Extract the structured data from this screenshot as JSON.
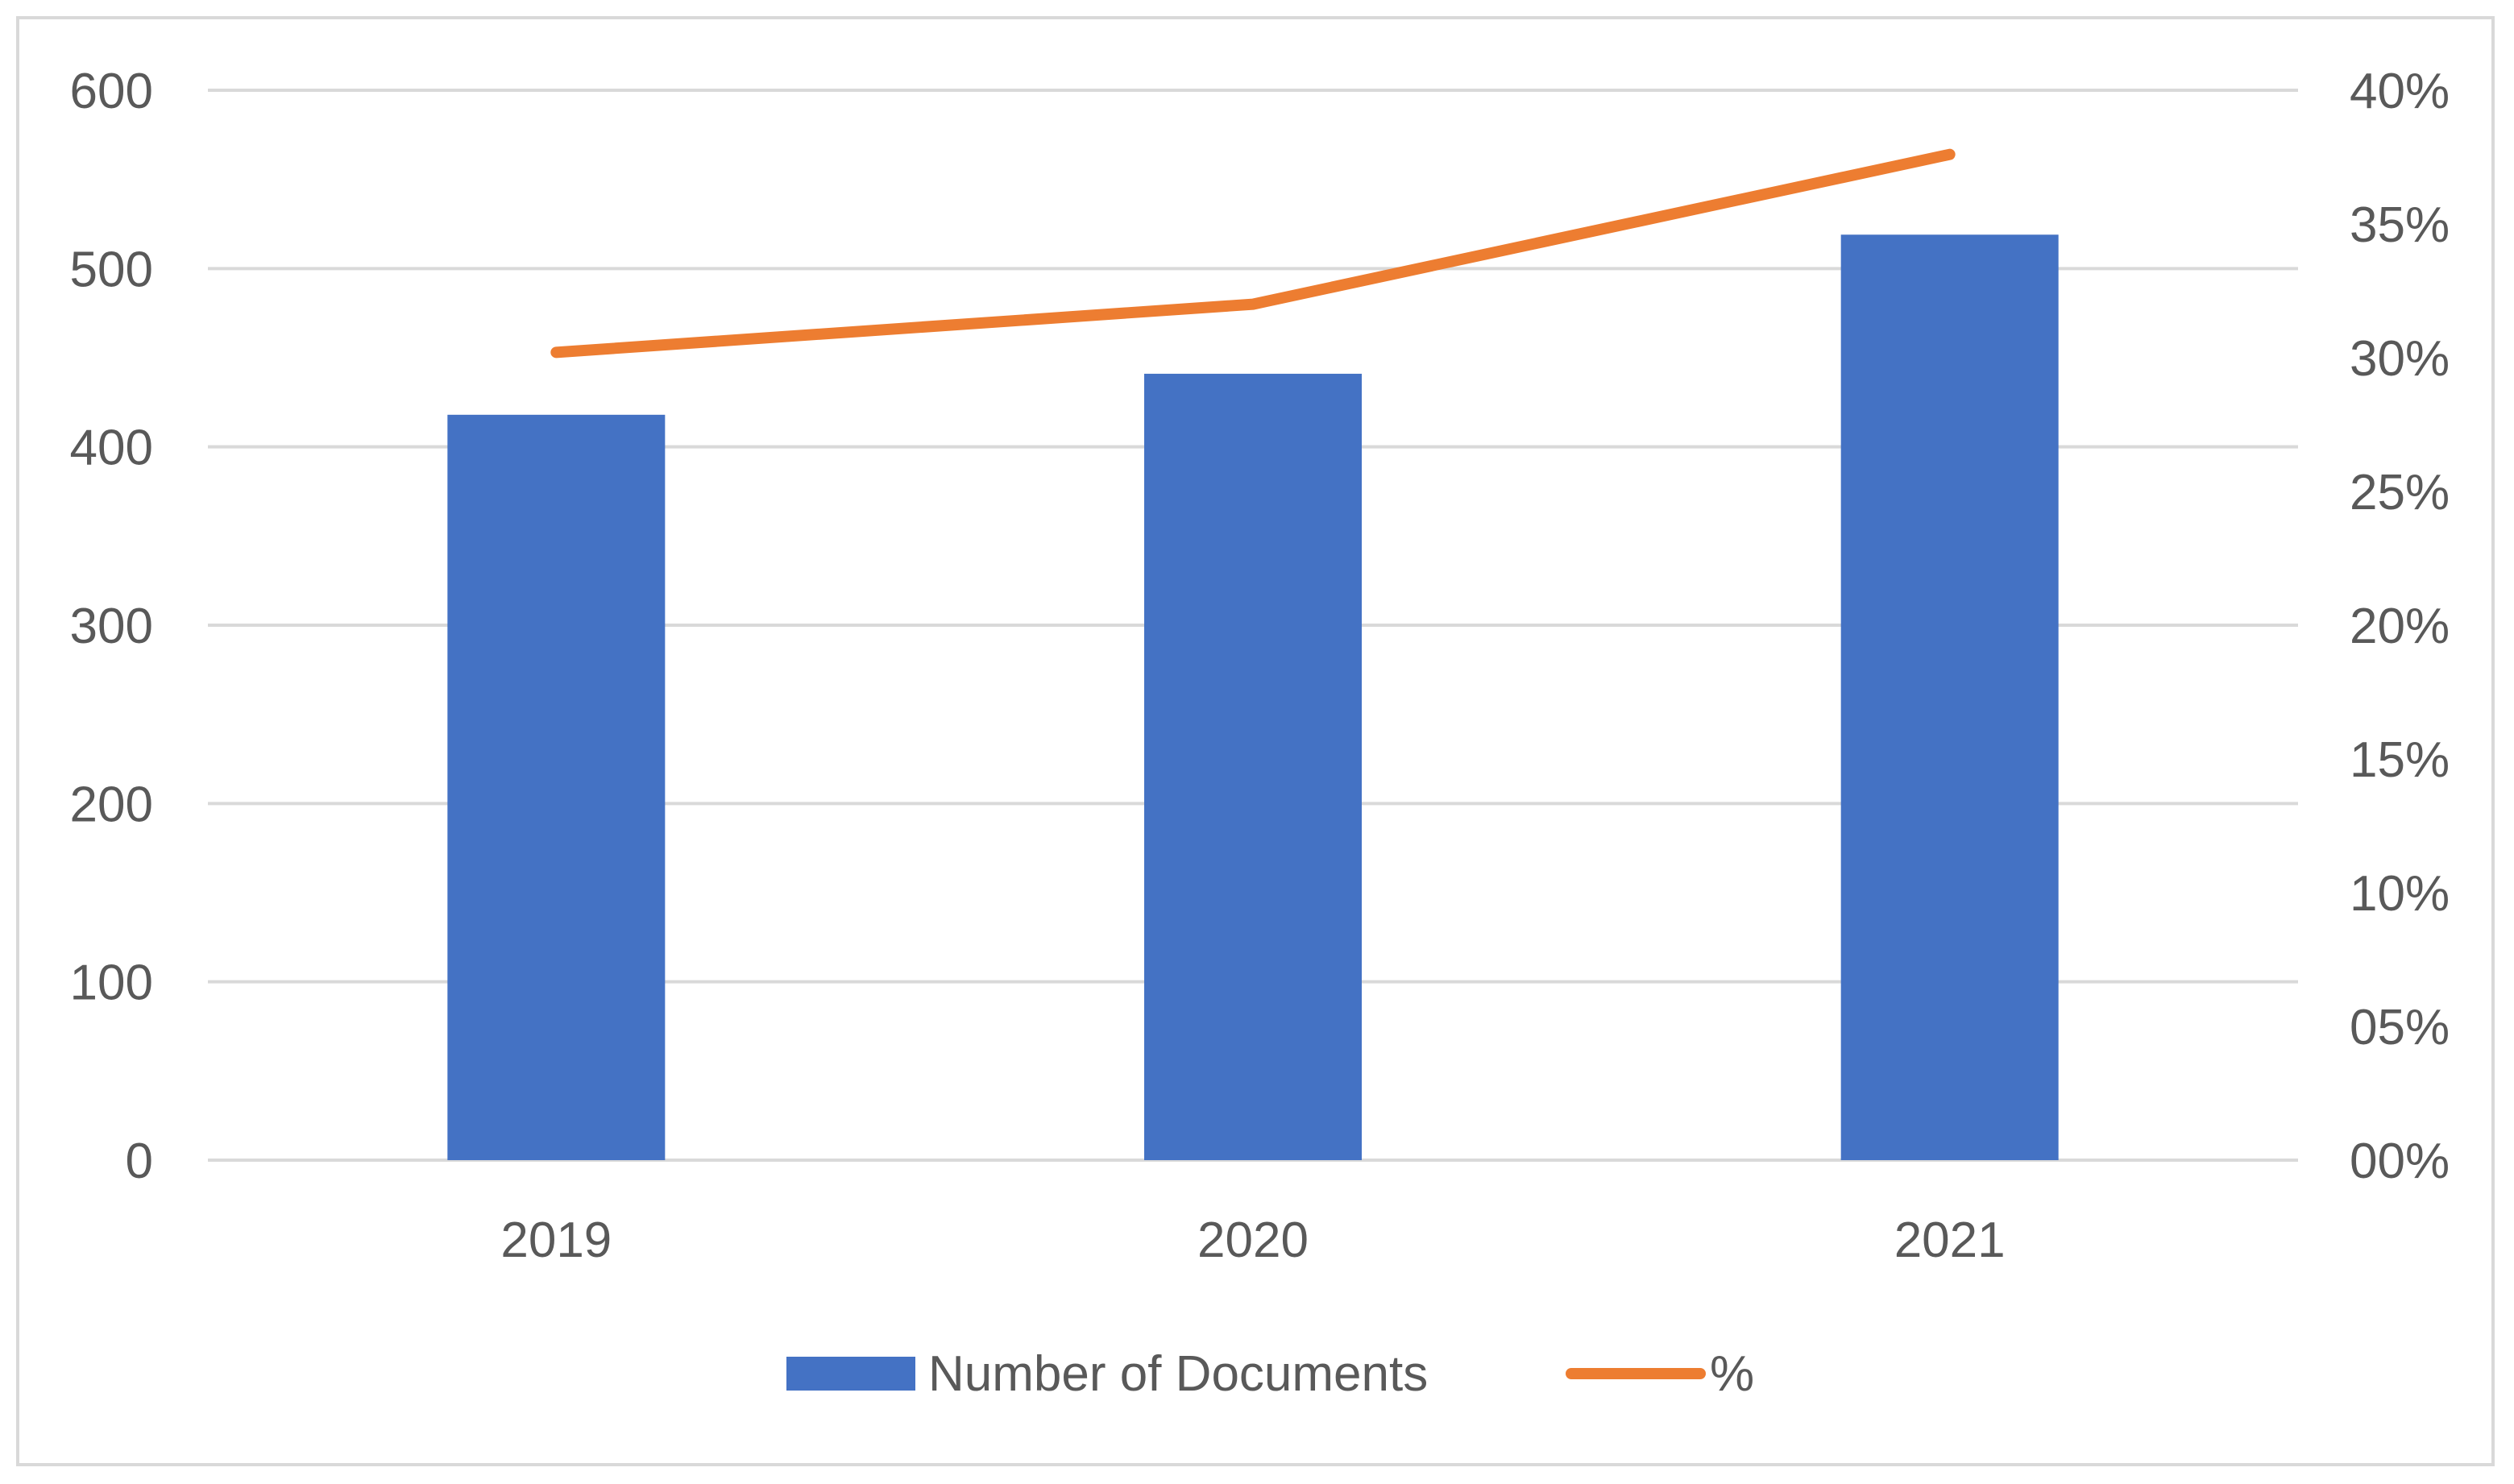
{
  "chart_data": {
    "type": "bar",
    "categories": [
      "2019",
      "2020",
      "2021"
    ],
    "series": [
      {
        "name": "Number of Documents",
        "type": "bar",
        "axis": "left",
        "color": "#4472C4",
        "values": [
          418,
          441,
          519
        ]
      },
      {
        "name": "%",
        "type": "line",
        "axis": "right",
        "color": "#ED7D31",
        "values": [
          0.302,
          0.32,
          0.376
        ]
      }
    ],
    "y_left": {
      "range": [
        0,
        600
      ],
      "ticks": [
        0,
        100,
        200,
        300,
        400,
        500,
        600
      ],
      "tick_labels": [
        "0",
        "100",
        "200",
        "300",
        "400",
        "500",
        "600"
      ]
    },
    "y_right": {
      "range": [
        0,
        0.4
      ],
      "ticks": [
        0,
        0.05,
        0.1,
        0.15,
        0.2,
        0.25,
        0.3,
        0.35,
        0.4
      ],
      "tick_labels": [
        "00%",
        "05%",
        "10%",
        "15%",
        "20%",
        "25%",
        "30%",
        "35%",
        "40%"
      ]
    },
    "title": "",
    "xlabel": "",
    "ylabel": "",
    "grid": true,
    "legend_position": "bottom"
  }
}
